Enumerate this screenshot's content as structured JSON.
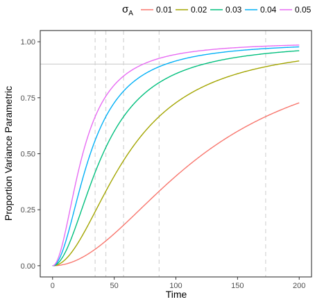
{
  "chart_data": {
    "type": "line",
    "xlabel": "Time",
    "ylabel": "Proportion Variance Parametric",
    "xlim": [
      -10,
      210
    ],
    "ylim": [
      -0.05,
      1.05
    ],
    "x_ticks": [
      0,
      50,
      100,
      150,
      200
    ],
    "y_ticks": [
      0.0,
      0.25,
      0.5,
      0.75,
      1.0
    ],
    "x_tick_labels": [
      "0",
      "50",
      "100",
      "150",
      "200"
    ],
    "y_tick_labels": [
      "0.00",
      "0.25",
      "0.50",
      "0.75",
      "1.00"
    ],
    "grid": false,
    "legend": {
      "position": "top",
      "title_symbol": "σ",
      "title_subscript": "A"
    },
    "reference_line": {
      "y": 0.9,
      "color": "#d3d3d3"
    },
    "vertical_dashed_lines": {
      "x": [
        34.5,
        43.2,
        57.6,
        86.4,
        172.8
      ],
      "color": "#d3d3d3"
    },
    "series": [
      {
        "name": "0.01",
        "color": "#F8766D",
        "k": 6.67e-05,
        "t_end": 200
      },
      {
        "name": "0.02",
        "color": "#A3A500",
        "k": 0.000267,
        "t_end": 200
      },
      {
        "name": "0.03",
        "color": "#00BF7D",
        "k": 0.0006,
        "t_end": 200
      },
      {
        "name": "0.04",
        "color": "#00B0F6",
        "k": 0.001067,
        "t_end": 200
      },
      {
        "name": "0.05",
        "color": "#E76BF3",
        "k": 0.001667,
        "t_end": 200
      }
    ],
    "series_formula": "y = 1 - 1/(1 + k*t^2)"
  }
}
